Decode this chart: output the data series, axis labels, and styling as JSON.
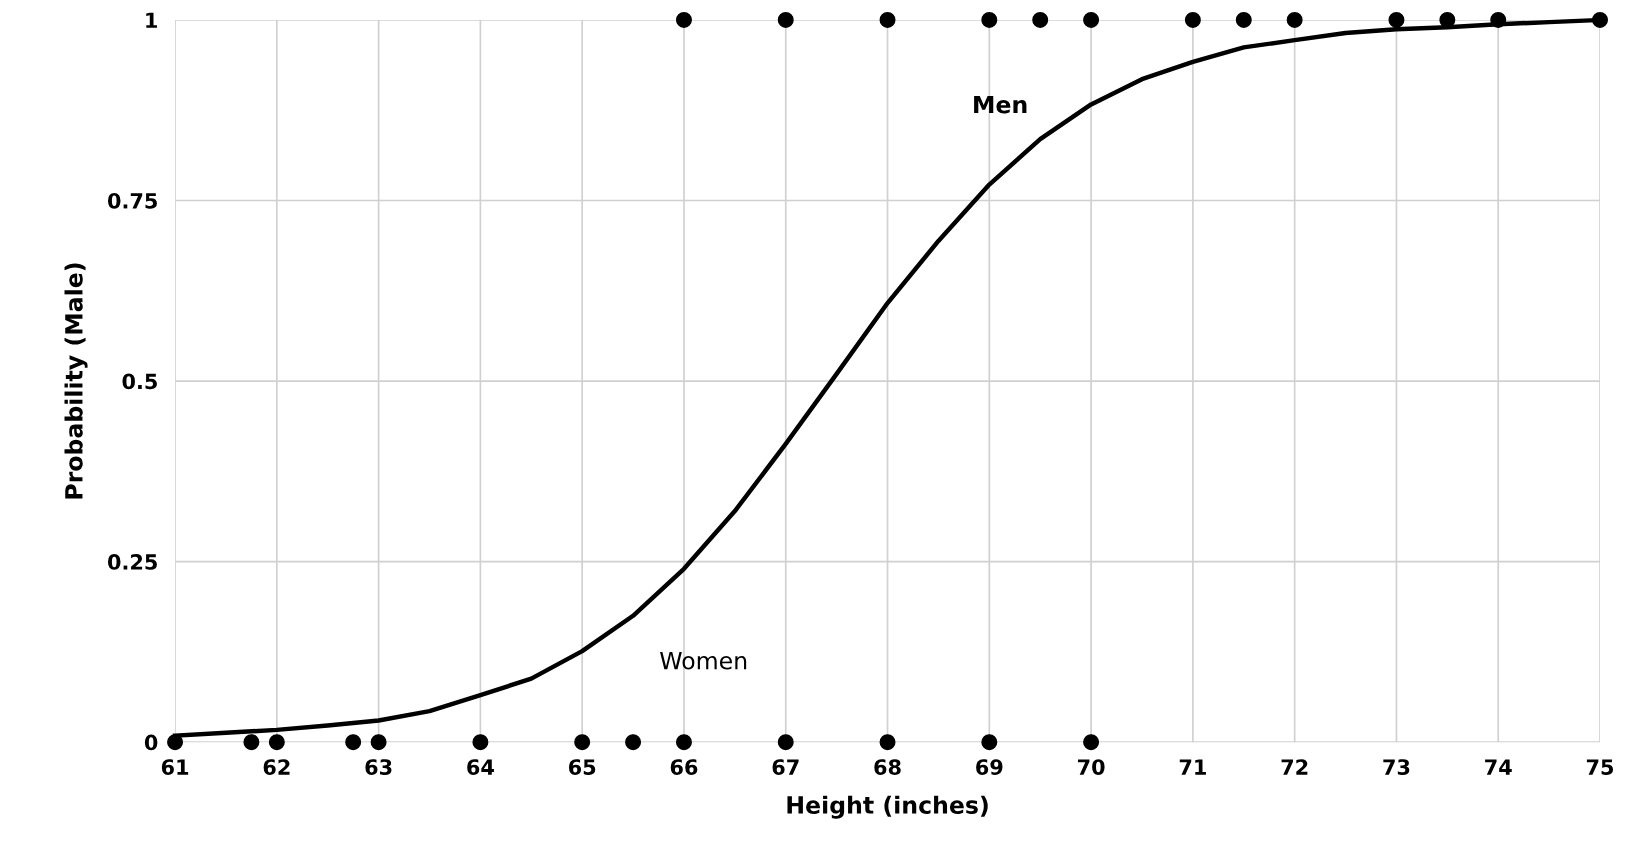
{
  "chart_data": {
    "type": "scatter",
    "xlabel": "Height (inches)",
    "ylabel": "Probability (Male)",
    "xlim": [
      61,
      75
    ],
    "xticks": [
      61,
      62,
      63,
      64,
      65,
      66,
      67,
      68,
      69,
      70,
      71,
      72,
      73,
      74,
      75
    ],
    "ylim": [
      0,
      1
    ],
    "yticks": [
      0,
      {
        "value": 0.25,
        "label": "0.25"
      },
      {
        "value": 0.5,
        "label": "0.5"
      },
      {
        "value": 0.75,
        "label": "0.75"
      },
      1
    ],
    "grid": true,
    "legend": false,
    "series": [
      {
        "color": "#000000",
        "marker": "circle",
        "x": [
          61,
          61.75,
          62,
          62.75,
          63,
          64,
          65,
          65.5,
          66,
          67,
          68,
          69,
          70
        ],
        "values": [
          0,
          0,
          0,
          0,
          0,
          0,
          0,
          0,
          0,
          0,
          0,
          0,
          0
        ]
      },
      {
        "color": "#000000",
        "marker": "circle",
        "x": [
          66,
          67,
          68,
          69,
          69.5,
          70,
          71,
          71.5,
          72,
          73,
          73.5,
          74,
          75
        ],
        "values": [
          1,
          1,
          1,
          1,
          1,
          1,
          1,
          1,
          1,
          1,
          1,
          1,
          1
        ]
      },
      {
        "type": "line",
        "color": "#000000",
        "marker": "none",
        "line_style": "solid",
        "x": [
          61,
          61.5,
          62,
          62.5,
          63,
          63.5,
          64,
          64.5,
          65,
          65.5,
          66,
          66.5,
          67,
          67.5,
          68,
          68.5,
          69,
          69.5,
          70,
          70.5,
          71,
          71.5,
          72,
          72.5,
          73,
          73.5,
          74,
          74.5,
          75
        ],
        "values": [
          0.009,
          0.013,
          0.017,
          0.023,
          0.03,
          0.043,
          0.065,
          0.088,
          0.126,
          0.175,
          0.24,
          0.32,
          0.413,
          0.51,
          0.608,
          0.694,
          0.772,
          0.835,
          0.883,
          0.918,
          0.942,
          0.962,
          0.972,
          0.982,
          0.987,
          0.99,
          0.994,
          0.997,
          1.0
        ]
      }
    ],
    "annotations": [
      "Men",
      "Women"
    ]
  }
}
